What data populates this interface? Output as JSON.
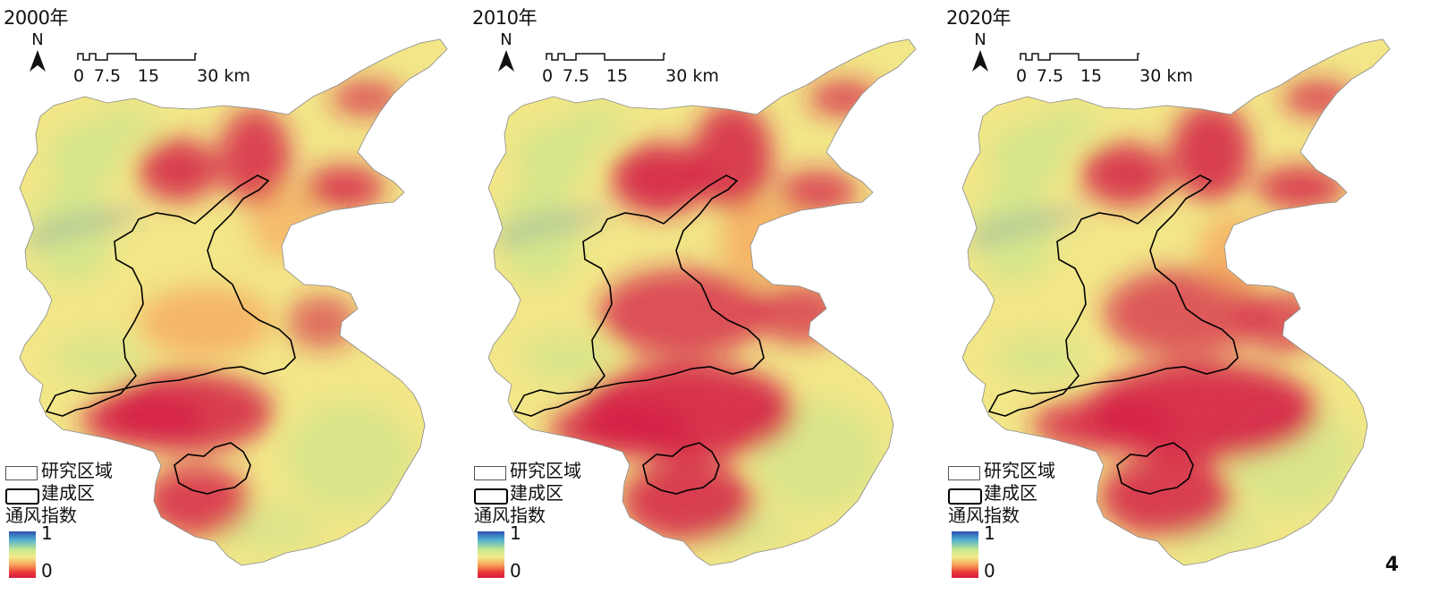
{
  "panels": [
    {
      "year_label": "2000年",
      "variant": 0
    },
    {
      "year_label": "2010年",
      "variant": 1
    },
    {
      "year_label": "2020年",
      "variant": 2
    }
  ],
  "north_label": "N",
  "scale_bar": {
    "ticks": [
      "0",
      "7.5",
      "15",
      "30 km"
    ]
  },
  "legend": {
    "study_area": "研究区域",
    "built_up": "建成区",
    "index_title": "通风指数",
    "max_label": "1",
    "min_label": "0"
  },
  "colors": {
    "high": "#2c4fb3",
    "mid_high": "#c8e88f",
    "mid": "#f2ea8a",
    "mid_low": "#f7a25a",
    "low": "#d41c46"
  },
  "figure_number": "4"
}
